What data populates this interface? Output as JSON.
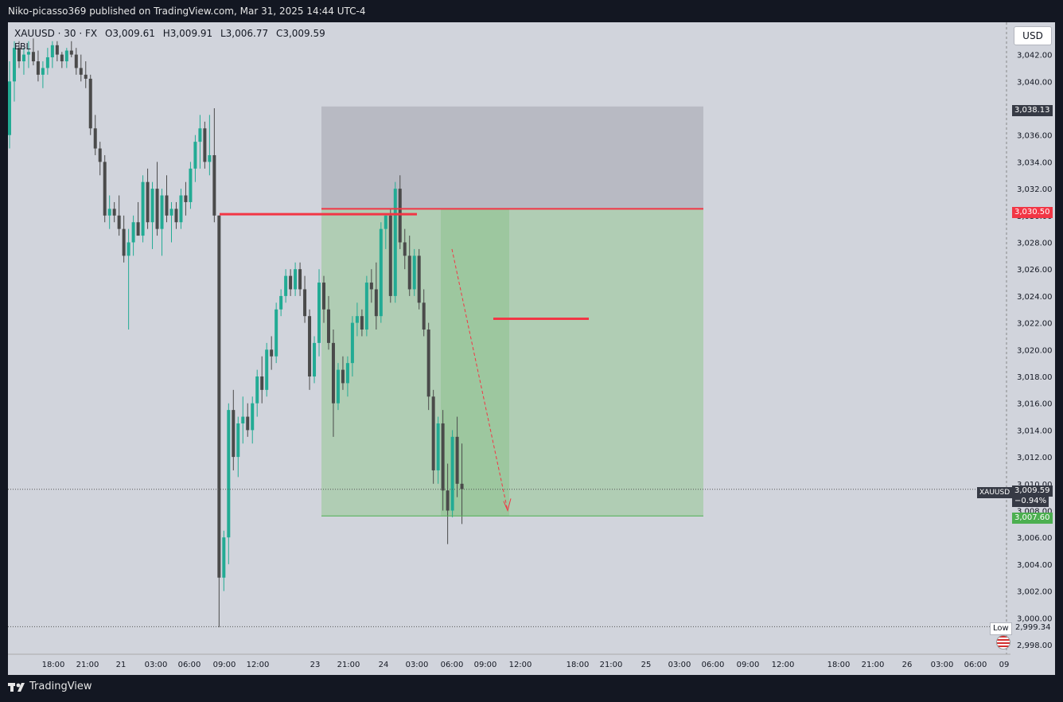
{
  "header": {
    "publisher": "Niko-picasso369 published on TradingView.com, Mar 31, 2025 14:44 UTC-4"
  },
  "legend": {
    "symbol": "XAUUSD · 30 · FX",
    "open_label": "O",
    "open": "3,009.61",
    "high_label": "H",
    "high": "3,009.91",
    "low_label": "L",
    "low": "3,006.77",
    "close_label": "C",
    "close": "3,009.59",
    "indicator": "EBL"
  },
  "currency_button": "USD",
  "brand": "TradingView",
  "colors": {
    "up": "#22ab94",
    "down": "#4a4a4a",
    "level_line": "#f23645",
    "stop_zone": "#b8bac3",
    "target_zone": "#b0cdb4",
    "target_zone_dark": "#9dc79f",
    "last_tag": "#363a45",
    "entry_tag": "#f23645",
    "target_tag": "#4caf50"
  },
  "price_tags": {
    "stop": "3,038.13",
    "entry": "3,030.50",
    "current_symbol": "XAUUSD",
    "current": "3,009.59",
    "change": "−0.94%",
    "target": "3,007.60",
    "low_label": "Low",
    "low": "2,999.34"
  },
  "chart_data": {
    "type": "candlestick",
    "symbol": "XAUUSD",
    "interval": "30",
    "ylim": [
      2997,
      3044
    ],
    "y_ticks": [
      "2,998.00",
      "3,000.00",
      "3,002.00",
      "3,004.00",
      "3,006.00",
      "3,008.00",
      "3,010.00",
      "3,012.00",
      "3,014.00",
      "3,016.00",
      "3,018.00",
      "3,020.00",
      "3,022.00",
      "3,024.00",
      "3,026.00",
      "3,028.00",
      "3,030.00",
      "3,032.00",
      "3,034.00",
      "3,036.00",
      "3,038.00",
      "3,040.00",
      "3,042.00"
    ],
    "x_ticks": [
      "18:00",
      "21:00",
      "21",
      "03:00",
      "06:00",
      "09:00",
      "12:00",
      "23",
      "21:00",
      "24",
      "03:00",
      "06:00",
      "09:00",
      "12:00",
      "18:00",
      "21:00",
      "25",
      "03:00",
      "06:00",
      "09:00",
      "12:00",
      "18:00",
      "21:00",
      "26",
      "03:00",
      "06:00",
      "09"
    ],
    "levels": {
      "stop": 3038.13,
      "entry": 3030.5,
      "target": 3007.6,
      "mid_line": 3022.3,
      "last": 3009.59,
      "low": 2999.34
    },
    "candles": [
      [
        3036.0,
        3041.5,
        3035.0,
        3040.0
      ],
      [
        3040.0,
        3043.0,
        3038.5,
        3042.5
      ],
      [
        3042.5,
        3043.0,
        3041.0,
        3041.5
      ],
      [
        3041.5,
        3042.5,
        3040.5,
        3042.0
      ],
      [
        3042.0,
        3043.0,
        3041.0,
        3042.2
      ],
      [
        3042.2,
        3043.2,
        3041.2,
        3041.5
      ],
      [
        3041.5,
        3042.3,
        3040.0,
        3040.5
      ],
      [
        3040.5,
        3041.5,
        3039.5,
        3041.0
      ],
      [
        3041.0,
        3042.5,
        3040.5,
        3041.8
      ],
      [
        3041.8,
        3043.0,
        3041.0,
        3042.7
      ],
      [
        3042.7,
        3043.0,
        3041.5,
        3042.0
      ],
      [
        3042.0,
        3042.2,
        3041.0,
        3041.5
      ],
      [
        3041.5,
        3042.5,
        3041.0,
        3042.3
      ],
      [
        3042.3,
        3043.0,
        3041.8,
        3042.0
      ],
      [
        3042.0,
        3042.5,
        3040.5,
        3041.0
      ],
      [
        3041.0,
        3042.0,
        3040.0,
        3040.5
      ],
      [
        3040.5,
        3041.5,
        3039.5,
        3040.2
      ],
      [
        3040.2,
        3040.5,
        3036.0,
        3036.5
      ],
      [
        3036.5,
        3037.5,
        3034.5,
        3035.0
      ],
      [
        3035.0,
        3035.5,
        3033.0,
        3034.0
      ],
      [
        3034.0,
        3034.5,
        3029.5,
        3030.0
      ],
      [
        3030.0,
        3031.5,
        3029.0,
        3030.5
      ],
      [
        3030.5,
        3031.0,
        3029.5,
        3030.0
      ],
      [
        3030.0,
        3031.5,
        3028.5,
        3029.0
      ],
      [
        3029.0,
        3030.0,
        3026.5,
        3027.0
      ],
      [
        3027.0,
        3029.0,
        3021.5,
        3028.0
      ],
      [
        3028.0,
        3030.0,
        3027.0,
        3029.5
      ],
      [
        3029.5,
        3031.0,
        3028.5,
        3028.5
      ],
      [
        3028.5,
        3033.0,
        3028.0,
        3032.5
      ],
      [
        3032.5,
        3033.5,
        3029.0,
        3029.5
      ],
      [
        3029.5,
        3032.5,
        3027.5,
        3032.0
      ],
      [
        3032.0,
        3034.0,
        3028.5,
        3029.0
      ],
      [
        3029.0,
        3032.0,
        3027.0,
        3031.5
      ],
      [
        3031.5,
        3033.0,
        3029.5,
        3030.0
      ],
      [
        3030.0,
        3031.0,
        3028.0,
        3030.5
      ],
      [
        3030.5,
        3031.0,
        3029.0,
        3029.5
      ],
      [
        3029.5,
        3032.0,
        3029.0,
        3031.5
      ],
      [
        3031.5,
        3032.5,
        3030.0,
        3031.0
      ],
      [
        3031.0,
        3034.0,
        3030.5,
        3033.5
      ],
      [
        3033.5,
        3036.0,
        3032.5,
        3035.5
      ],
      [
        3035.5,
        3037.5,
        3033.5,
        3036.5
      ],
      [
        3036.5,
        3037.0,
        3033.5,
        3034.0
      ],
      [
        3034.0,
        3037.5,
        3033.0,
        3034.5
      ],
      [
        3034.5,
        3038.0,
        3029.5,
        3030.0
      ],
      [
        3030.0,
        3030.0,
        2999.3,
        3003.0
      ],
      [
        3003.0,
        3006.5,
        3002.0,
        3006.0
      ],
      [
        3006.0,
        3016.0,
        3004.0,
        3015.5
      ],
      [
        3015.5,
        3017.0,
        3011.0,
        3012.0
      ],
      [
        3012.0,
        3015.0,
        3010.5,
        3014.5
      ],
      [
        3014.5,
        3016.5,
        3013.0,
        3015.0
      ],
      [
        3015.0,
        3016.0,
        3013.5,
        3014.0
      ],
      [
        3014.0,
        3016.5,
        3013.0,
        3016.0
      ],
      [
        3016.0,
        3018.5,
        3015.0,
        3018.0
      ],
      [
        3018.0,
        3019.5,
        3016.0,
        3017.0
      ],
      [
        3017.0,
        3020.5,
        3016.5,
        3020.0
      ],
      [
        3020.0,
        3021.0,
        3018.5,
        3019.5
      ],
      [
        3019.5,
        3023.5,
        3019.0,
        3023.0
      ],
      [
        3023.0,
        3024.5,
        3022.5,
        3024.0
      ],
      [
        3024.0,
        3026.0,
        3023.5,
        3025.5
      ],
      [
        3025.5,
        3026.0,
        3024.0,
        3024.5
      ],
      [
        3024.5,
        3026.5,
        3024.0,
        3026.0
      ],
      [
        3026.0,
        3026.5,
        3024.0,
        3024.5
      ],
      [
        3024.5,
        3025.5,
        3022.0,
        3022.5
      ],
      [
        3022.5,
        3023.0,
        3017.0,
        3018.0
      ],
      [
        3018.0,
        3021.0,
        3017.5,
        3020.5
      ],
      [
        3020.5,
        3026.0,
        3019.5,
        3025.0
      ],
      [
        3025.0,
        3025.5,
        3022.0,
        3023.0
      ],
      [
        3023.0,
        3024.0,
        3020.0,
        3020.5
      ],
      [
        3020.5,
        3021.5,
        3013.5,
        3016.0
      ],
      [
        3016.0,
        3019.0,
        3015.5,
        3018.5
      ],
      [
        3018.5,
        3019.5,
        3017.0,
        3017.5
      ],
      [
        3017.5,
        3019.5,
        3016.5,
        3019.0
      ],
      [
        3019.0,
        3022.5,
        3018.0,
        3022.0
      ],
      [
        3022.0,
        3023.5,
        3021.0,
        3022.5
      ],
      [
        3022.5,
        3023.0,
        3021.0,
        3021.5
      ],
      [
        3021.5,
        3025.5,
        3021.0,
        3025.0
      ],
      [
        3025.0,
        3026.0,
        3023.5,
        3024.5
      ],
      [
        3024.5,
        3026.5,
        3021.5,
        3022.5
      ],
      [
        3022.5,
        3029.5,
        3022.0,
        3029.0
      ],
      [
        3029.0,
        3030.0,
        3027.5,
        3030.0
      ],
      [
        3030.0,
        3030.5,
        3023.5,
        3024.0
      ],
      [
        3024.0,
        3032.5,
        3023.5,
        3032.0
      ],
      [
        3032.0,
        3033.0,
        3027.5,
        3028.0
      ],
      [
        3028.0,
        3029.0,
        3026.0,
        3027.0
      ],
      [
        3027.0,
        3028.5,
        3024.0,
        3024.5
      ],
      [
        3024.5,
        3027.5,
        3024.0,
        3027.0
      ],
      [
        3027.0,
        3027.5,
        3023.0,
        3023.5
      ],
      [
        3023.5,
        3024.5,
        3021.0,
        3021.5
      ],
      [
        3021.5,
        3022.0,
        3015.5,
        3016.5
      ],
      [
        3016.5,
        3017.0,
        3010.0,
        3011.0
      ],
      [
        3011.0,
        3015.0,
        3010.0,
        3014.5
      ],
      [
        3014.5,
        3015.5,
        3008.0,
        3009.5
      ],
      [
        3009.5,
        3011.5,
        3005.5,
        3008.0
      ],
      [
        3008.0,
        3014.0,
        3007.5,
        3013.5
      ],
      [
        3013.5,
        3015.0,
        3009.0,
        3010.0
      ],
      [
        3010.0,
        3013.0,
        3007.0,
        3009.6
      ]
    ]
  }
}
